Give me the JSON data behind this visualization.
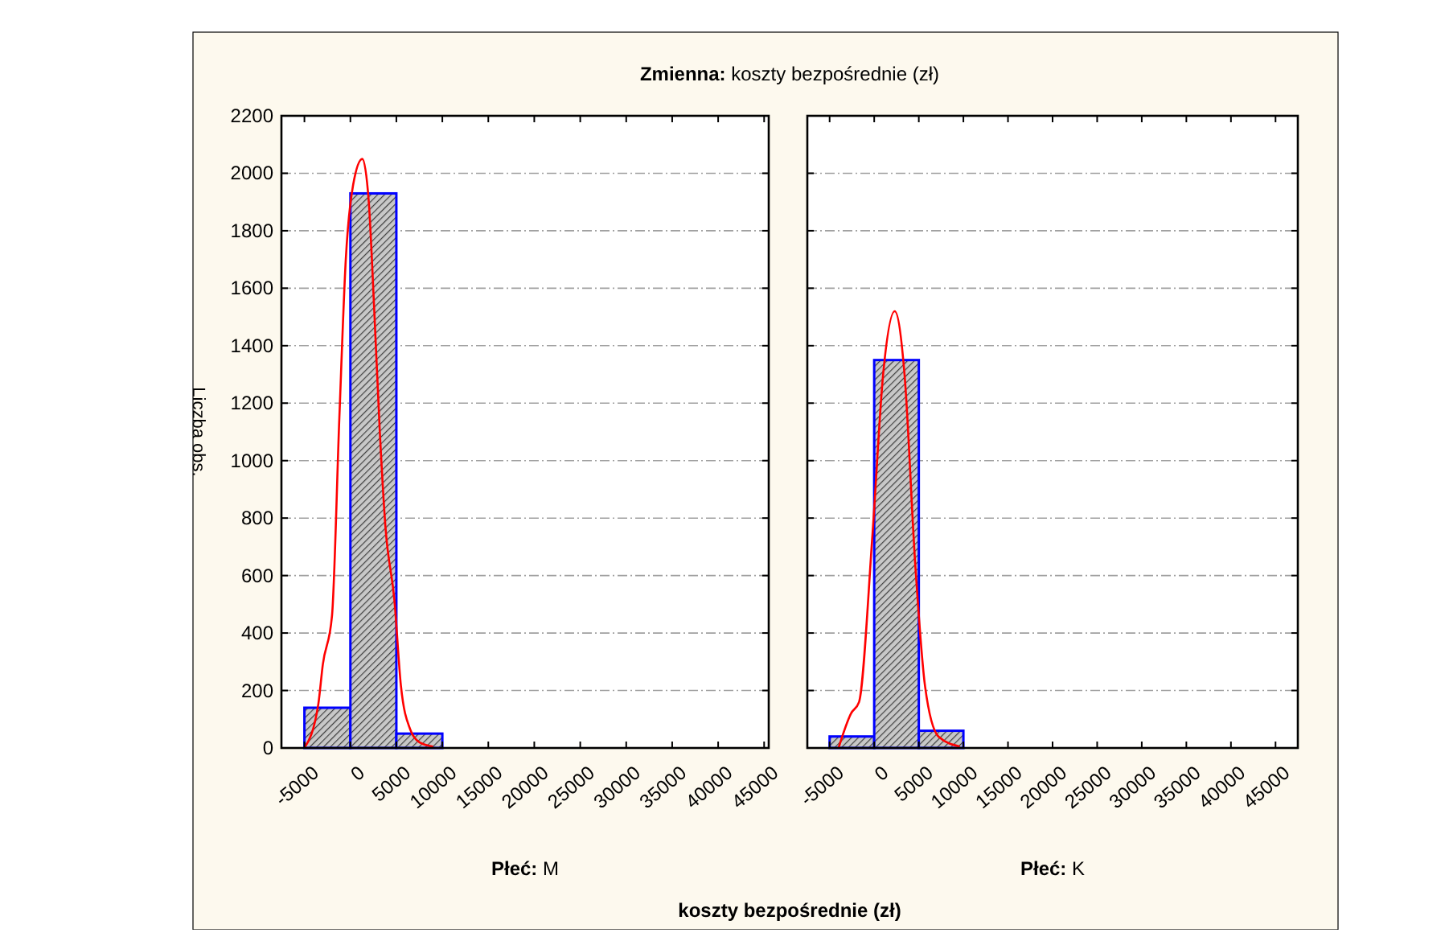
{
  "chart_data": [
    {
      "type": "histogram",
      "title": "Zmienna: koszty bezpośrednie (zł)",
      "subtitle": "Płeć: M",
      "xlabel": "koszty bezpośrednie (zł)",
      "ylabel": "Liczba obs.",
      "bins": [
        -5000,
        0,
        5000,
        10000
      ],
      "values": [
        140,
        1930,
        50
      ],
      "color": "#0000ff",
      "xlim": [
        -7500,
        45500
      ],
      "ylim": [
        0,
        2200
      ],
      "xticks": [
        -5000,
        0,
        5000,
        10000,
        15000,
        20000,
        25000,
        30000,
        35000,
        40000,
        45000
      ],
      "yticks": [
        0,
        200,
        400,
        600,
        800,
        1000,
        1200,
        1400,
        1600,
        1800,
        2000,
        2200
      ],
      "grid": "y",
      "series": [
        {
          "type": "line",
          "color": "#ff0000",
          "x": [
            -5000,
            -3500,
            -3000,
            -2000,
            -1200,
            -500,
            300,
            1300,
            2000,
            2600,
            3200,
            3800,
            4800,
            5500,
            6500,
            7500,
            9000
          ],
          "values": [
            0,
            150,
            290,
            460,
            1150,
            1700,
            1960,
            2050,
            1900,
            1520,
            1100,
            775,
            510,
            215,
            65,
            20,
            5
          ]
        }
      ]
    },
    {
      "type": "histogram",
      "subtitle": "Płeć: K",
      "bins": [
        -5000,
        0,
        5000,
        10000
      ],
      "values": [
        40,
        1350,
        60
      ],
      "color": "#0000ff",
      "xlim": [
        -7500,
        47500
      ],
      "ylim": [
        0,
        2200
      ],
      "xticks": [
        -5000,
        0,
        5000,
        10000,
        15000,
        20000,
        25000,
        30000,
        35000,
        40000,
        45000
      ],
      "yticks": [
        0,
        200,
        400,
        600,
        800,
        1000,
        1200,
        1400,
        1600,
        1800,
        2000,
        2200
      ],
      "grid": "y",
      "tick_labels": "x",
      "series": [
        {
          "type": "line",
          "color": "#ff0000",
          "x": [
            -4000,
            -2600,
            -1700,
            -200,
            1000,
            2300,
            3400,
            4600,
            5700,
            7200,
            9600
          ],
          "values": [
            0,
            120,
            160,
            740,
            1300,
            1520,
            1300,
            640,
            215,
            40,
            5
          ]
        }
      ]
    }
  ]
}
